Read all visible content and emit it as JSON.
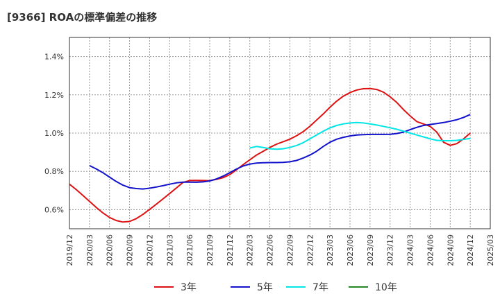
{
  "chart_data": {
    "type": "line",
    "title": "[9366]  ROAの標準偏差の推移",
    "xlabel": "",
    "ylabel": "",
    "ylim": [
      0.5,
      1.5
    ],
    "yticks": [
      0.6,
      0.8,
      1.0,
      1.2,
      1.4
    ],
    "ytick_labels": [
      "0.6%",
      "0.8%",
      "1.0%",
      "1.2%",
      "1.4%"
    ],
    "xlim": [
      "2019/12",
      "2025/03"
    ],
    "xtick_labels": [
      "2019/12",
      "2020/03",
      "2020/06",
      "2020/09",
      "2020/12",
      "2021/03",
      "2021/06",
      "2021/09",
      "2021/12",
      "2022/03",
      "2022/06",
      "2022/09",
      "2022/12",
      "2023/03",
      "2023/06",
      "2023/09",
      "2023/12",
      "2024/03",
      "2024/06",
      "2024/09",
      "2024/12",
      "2025/03"
    ],
    "grid": true,
    "legend_position": "bottom",
    "series": [
      {
        "name": "3年",
        "color": "#dd1111",
        "x": [
          "2019/12",
          "2020/01",
          "2020/02",
          "2020/03",
          "2020/04",
          "2020/05",
          "2020/06",
          "2020/07",
          "2020/08",
          "2020/09",
          "2020/10",
          "2020/11",
          "2020/12",
          "2021/01",
          "2021/02",
          "2021/03",
          "2021/04",
          "2021/05",
          "2021/06",
          "2021/07",
          "2021/08",
          "2021/09",
          "2021/10",
          "2021/11",
          "2021/12",
          "2022/01",
          "2022/02",
          "2022/03",
          "2022/04",
          "2022/05",
          "2022/06",
          "2022/07",
          "2022/08",
          "2022/09",
          "2022/10",
          "2022/11",
          "2022/12",
          "2023/01",
          "2023/02",
          "2023/03",
          "2023/04",
          "2023/05",
          "2023/06",
          "2023/07",
          "2023/08",
          "2023/09",
          "2023/10",
          "2023/11",
          "2023/12",
          "2024/01",
          "2024/02",
          "2024/03",
          "2024/04",
          "2024/05",
          "2024/06",
          "2024/07",
          "2024/08",
          "2024/09",
          "2024/10",
          "2024/11",
          "2024/12"
        ],
        "values": [
          0.733,
          0.705,
          0.675,
          0.643,
          0.612,
          0.583,
          0.559,
          0.543,
          0.535,
          0.538,
          0.553,
          0.575,
          0.601,
          0.628,
          0.656,
          0.684,
          0.713,
          0.742,
          0.752,
          0.753,
          0.752,
          0.751,
          0.758,
          0.767,
          0.783,
          0.808,
          0.835,
          0.86,
          0.885,
          0.905,
          0.925,
          0.942,
          0.955,
          0.968,
          0.986,
          1.008,
          1.036,
          1.068,
          1.1,
          1.135,
          1.167,
          1.193,
          1.212,
          1.225,
          1.232,
          1.233,
          1.228,
          1.214,
          1.19,
          1.16,
          1.123,
          1.09,
          1.06,
          1.048,
          1.035,
          1.005,
          0.952,
          0.936,
          0.945,
          0.97,
          1.0
        ]
      },
      {
        "name": "5年",
        "color": "#1111cc",
        "x": [
          "2020/03",
          "2020/04",
          "2020/05",
          "2020/06",
          "2020/07",
          "2020/08",
          "2020/09",
          "2020/10",
          "2020/11",
          "2020/12",
          "2021/01",
          "2021/02",
          "2021/03",
          "2021/04",
          "2021/05",
          "2021/06",
          "2021/07",
          "2021/08",
          "2021/09",
          "2021/10",
          "2021/11",
          "2021/12",
          "2022/01",
          "2022/02",
          "2022/03",
          "2022/04",
          "2022/05",
          "2022/06",
          "2022/07",
          "2022/08",
          "2022/09",
          "2022/10",
          "2022/11",
          "2022/12",
          "2023/01",
          "2023/02",
          "2023/03",
          "2023/04",
          "2023/05",
          "2023/06",
          "2023/07",
          "2023/08",
          "2023/09",
          "2023/10",
          "2023/11",
          "2023/12",
          "2024/01",
          "2024/02",
          "2024/03",
          "2024/04",
          "2024/05",
          "2024/06",
          "2024/07",
          "2024/08",
          "2024/09",
          "2024/10",
          "2024/11",
          "2024/12"
        ],
        "values": [
          0.83,
          0.813,
          0.793,
          0.77,
          0.747,
          0.728,
          0.715,
          0.71,
          0.708,
          0.712,
          0.718,
          0.725,
          0.733,
          0.74,
          0.744,
          0.744,
          0.743,
          0.745,
          0.75,
          0.76,
          0.775,
          0.793,
          0.812,
          0.828,
          0.838,
          0.843,
          0.845,
          0.846,
          0.846,
          0.847,
          0.85,
          0.857,
          0.87,
          0.885,
          0.905,
          0.93,
          0.952,
          0.968,
          0.978,
          0.985,
          0.99,
          0.992,
          0.993,
          0.993,
          0.993,
          0.994,
          0.998,
          1.005,
          1.018,
          1.03,
          1.04,
          1.045,
          1.05,
          1.055,
          1.062,
          1.07,
          1.082,
          1.097
        ]
      },
      {
        "name": "7年",
        "color": "#00e5e5",
        "x": [
          "2022/03",
          "2022/04",
          "2022/05",
          "2022/06",
          "2022/07",
          "2022/08",
          "2022/09",
          "2022/10",
          "2022/11",
          "2022/12",
          "2023/01",
          "2023/02",
          "2023/03",
          "2023/04",
          "2023/05",
          "2023/06",
          "2023/07",
          "2023/08",
          "2023/09",
          "2023/10",
          "2023/11",
          "2023/12",
          "2024/01",
          "2024/02",
          "2024/03",
          "2024/04",
          "2024/05",
          "2024/06",
          "2024/07",
          "2024/08",
          "2024/09",
          "2024/10",
          "2024/11",
          "2024/12"
        ],
        "values": [
          0.922,
          0.93,
          0.925,
          0.918,
          0.916,
          0.918,
          0.925,
          0.935,
          0.95,
          0.97,
          0.99,
          1.01,
          1.027,
          1.04,
          1.048,
          1.053,
          1.055,
          1.053,
          1.048,
          1.042,
          1.035,
          1.028,
          1.02,
          1.01,
          1.0,
          0.99,
          0.98,
          0.97,
          0.962,
          0.96,
          0.96,
          0.962,
          0.967,
          0.972
        ]
      },
      {
        "name": "10年",
        "color": "#228822",
        "x": [],
        "values": []
      }
    ]
  }
}
